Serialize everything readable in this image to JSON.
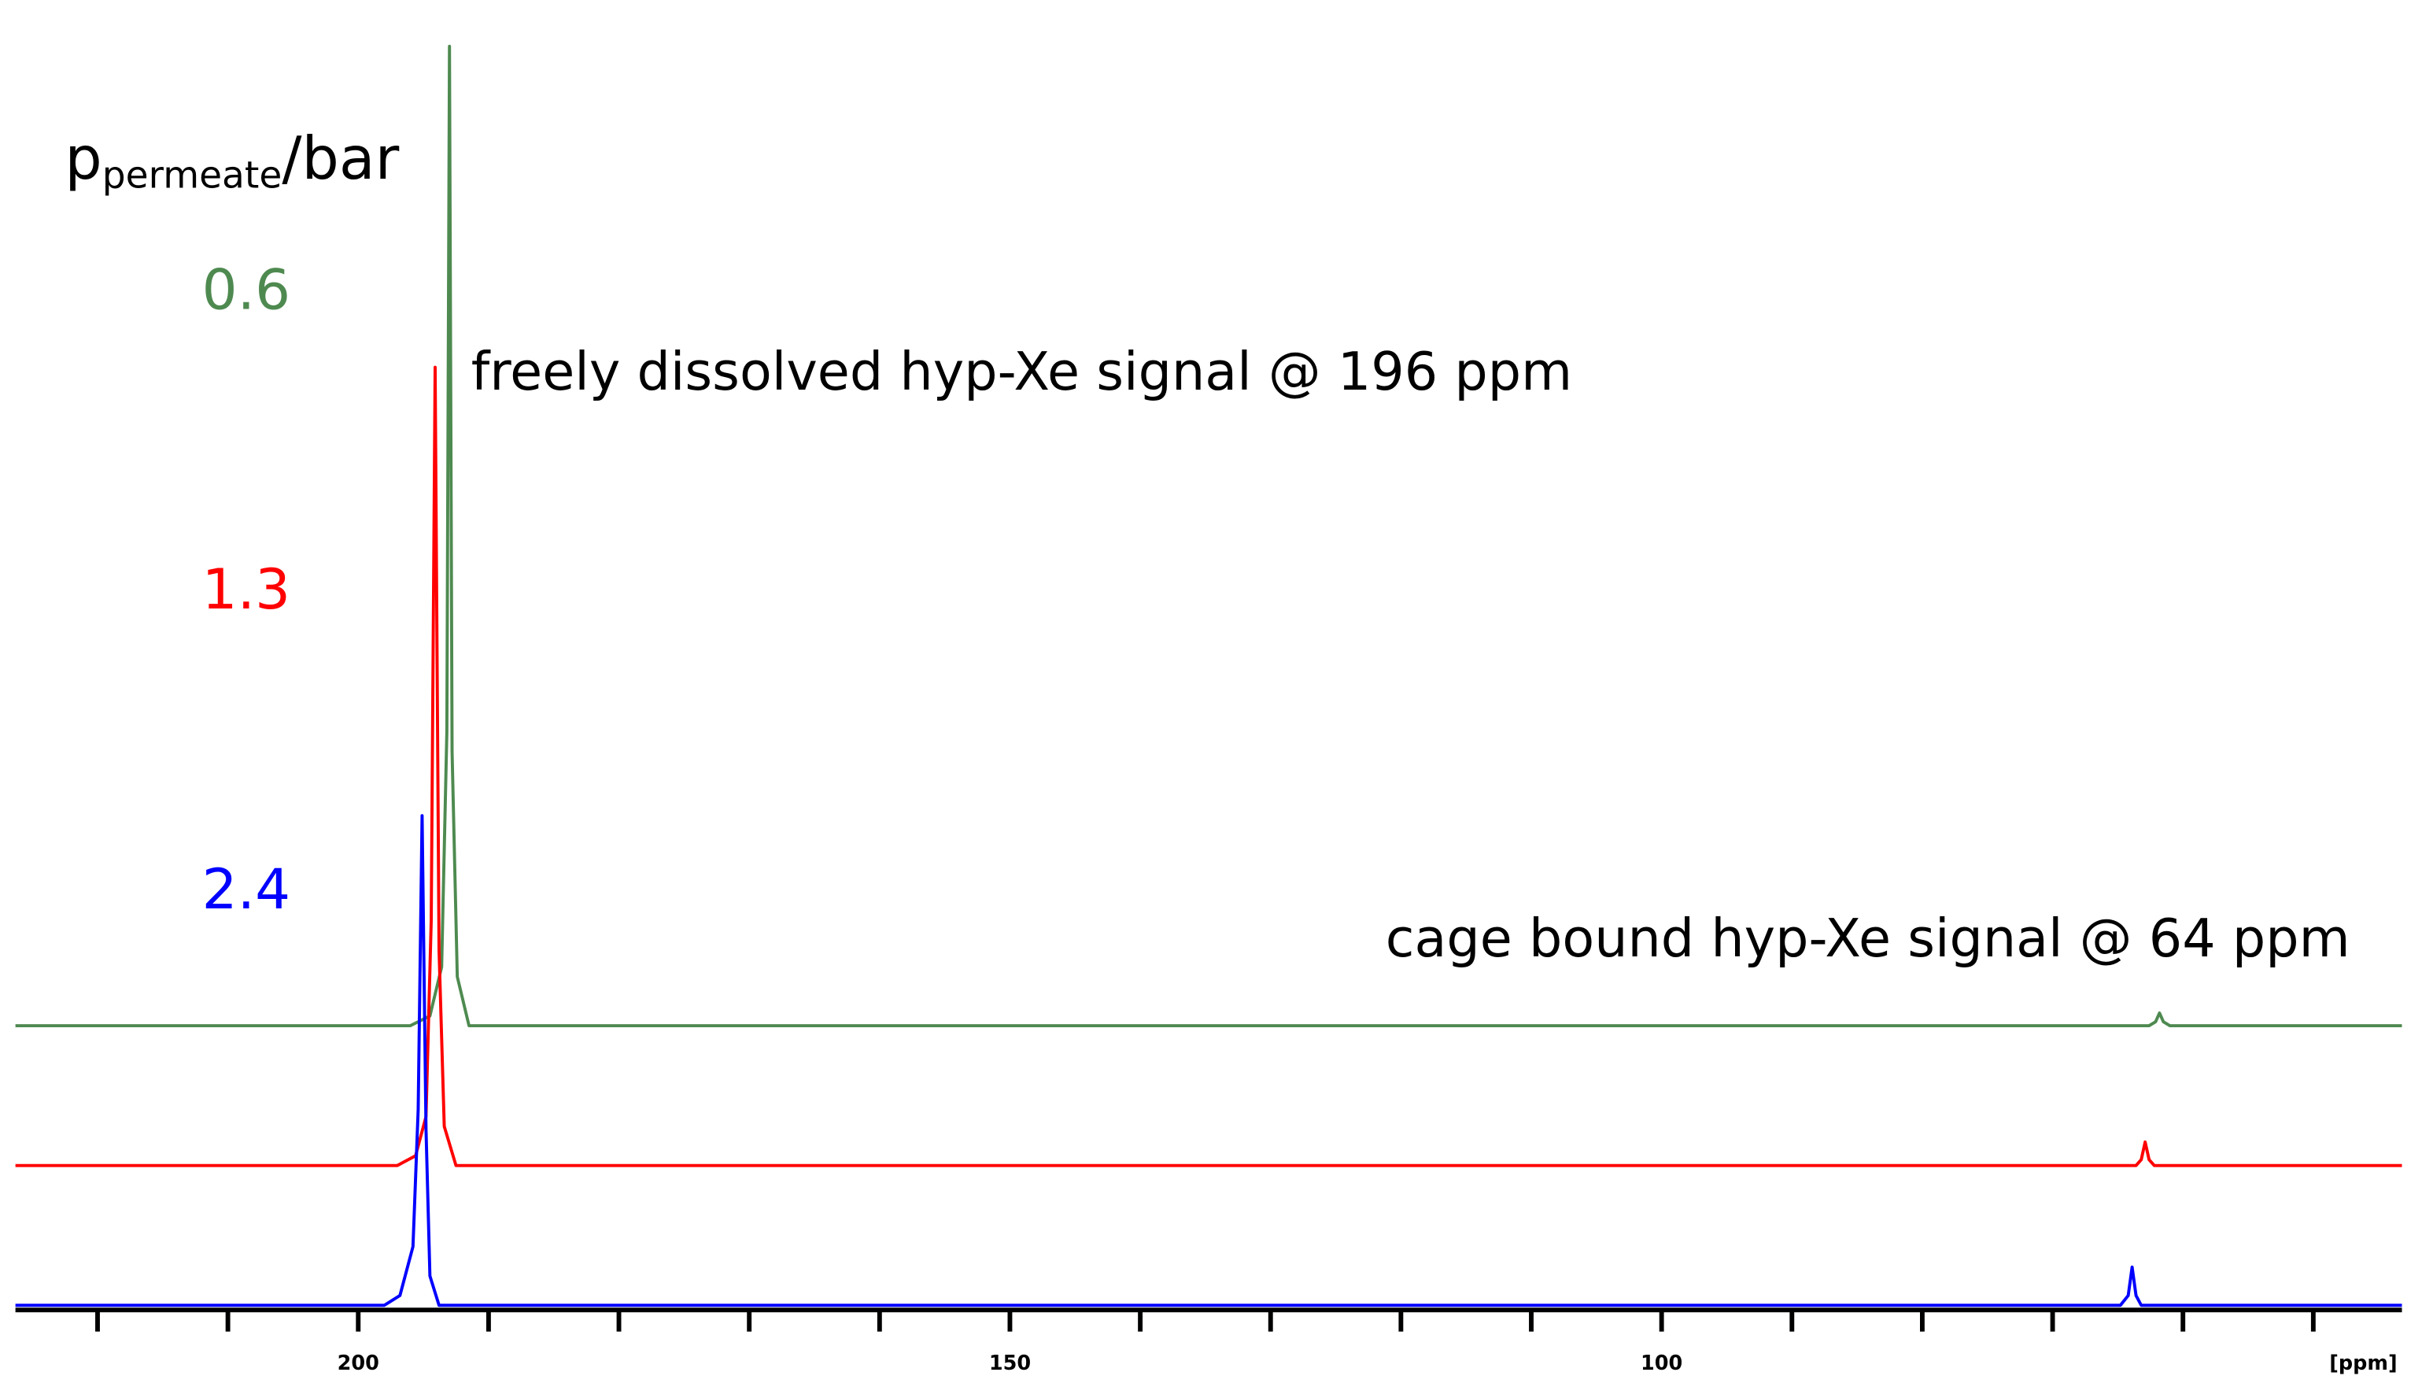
{
  "chart_data": {
    "type": "line",
    "legend_title": {
      "main": "p",
      "sub": "permeate",
      "unit": "/bar"
    },
    "annotations": [
      "freely dissolved hyp-Xe signal @ 196 ppm",
      "cage bound hyp-Xe signal @ 64 ppm"
    ],
    "x_label": "[ppm]",
    "xlim": [
      226.3,
      43.2
    ],
    "xticks": [
      200,
      150,
      100
    ],
    "xminorticks": [
      220,
      210,
      190,
      180,
      170,
      160,
      140,
      130,
      120,
      110,
      90,
      80,
      70,
      60,
      50
    ],
    "ylim": [
      0,
      100
    ],
    "series": [
      {
        "name": "0.6",
        "color": "#4e8a50",
        "x": [
          226.3,
          196,
          194.5,
          193.6,
          193.2,
          193.0,
          192.8,
          192.4,
          191.5,
          62.6,
          62.1,
          61.8,
          61.5,
          61,
          43.2
        ],
        "values": [
          0,
          0,
          1,
          6,
          30,
          100,
          28,
          5,
          0,
          0,
          0.4,
          1.3,
          0.4,
          0,
          0
        ]
      },
      {
        "name": "1.3",
        "color": "#ff0000",
        "x": [
          226.3,
          197,
          195.6,
          194.8,
          194.4,
          194.1,
          193.8,
          193.4,
          192.5,
          63.6,
          63.2,
          62.9,
          62.6,
          62.2,
          43.2
        ],
        "values": [
          0,
          0,
          1,
          5,
          25,
          81.5,
          22,
          4,
          0,
          0,
          0.6,
          2.4,
          0.6,
          0,
          0
        ]
      },
      {
        "name": "2.4",
        "color": "#0000ff",
        "x": [
          226.3,
          198,
          196.8,
          195.8,
          195.4,
          195.1,
          194.8,
          194.5,
          193.8,
          64.8,
          64.2,
          63.9,
          63.6,
          63.2,
          43.2
        ],
        "values": [
          0,
          0,
          1,
          6,
          20,
          50,
          18,
          3,
          0,
          0,
          1,
          3.9,
          1,
          0,
          0
        ]
      }
    ]
  }
}
